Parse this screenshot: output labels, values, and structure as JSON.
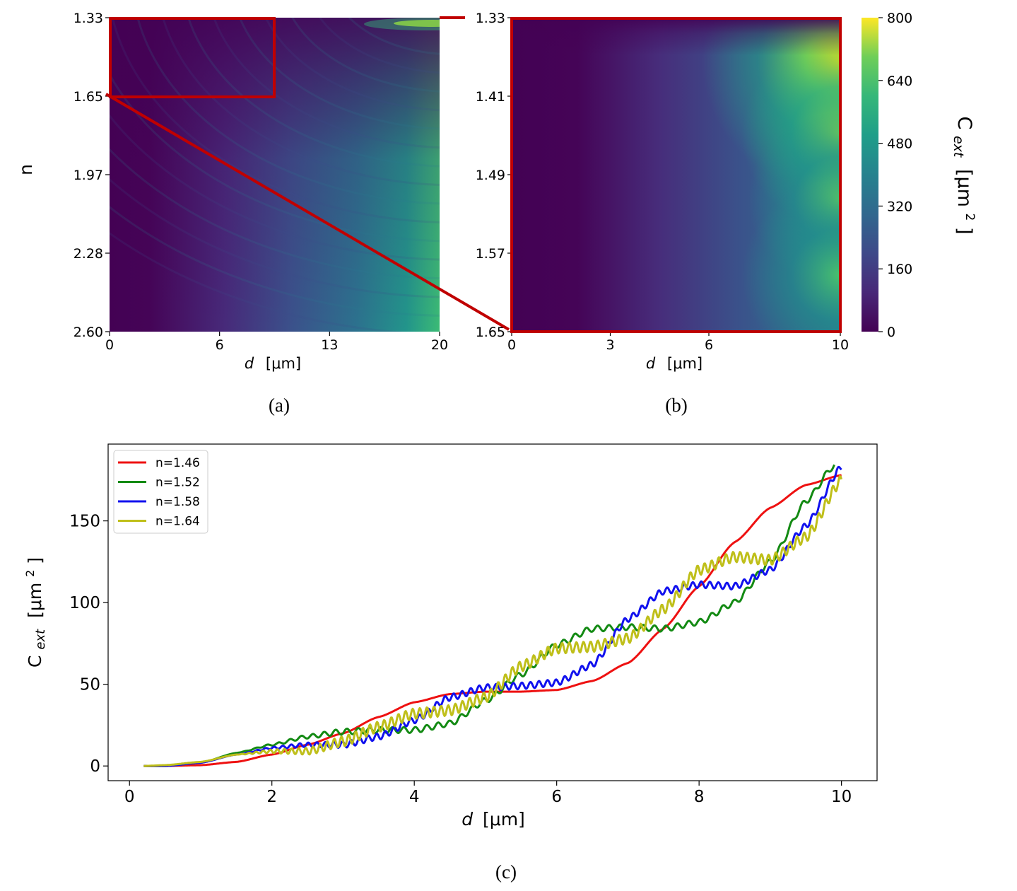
{
  "colors": {
    "frame_red": "#c00000",
    "viridis_dark": "#440154",
    "viridis_mid": "#21918c",
    "viridis_light": "#fde725"
  },
  "chart_data": [
    {
      "id": "a",
      "type": "heatmap",
      "panel_label": "(a)",
      "xlabel_var": "d",
      "xlabel_unit": "[μm]",
      "ylabel": "n",
      "x_ticks": [
        "0",
        "6",
        "13",
        "20"
      ],
      "x_range": [
        0,
        20
      ],
      "y_ticks": [
        "1.33",
        "1.65",
        "1.97",
        "2.28",
        "2.60"
      ],
      "y_range": [
        1.33,
        2.6
      ],
      "zoom_box": {
        "x_range": [
          0,
          10
        ],
        "y_range": [
          1.33,
          1.65
        ]
      }
    },
    {
      "id": "b",
      "type": "heatmap",
      "panel_label": "(b)",
      "xlabel_var": "d",
      "xlabel_unit": "[μm]",
      "x_ticks": [
        "0",
        "3",
        "6",
        "10"
      ],
      "x_range": [
        0,
        10
      ],
      "y_ticks": [
        "1.33",
        "1.41",
        "1.49",
        "1.57",
        "1.65"
      ],
      "y_range": [
        1.33,
        1.65
      ]
    },
    {
      "id": "colorbar",
      "type": "colorbar",
      "ticks": [
        "800",
        "640",
        "480",
        "320",
        "160",
        "0"
      ],
      "range": [
        0,
        800
      ],
      "label_main": "C",
      "label_sub": "ext",
      "label_unit": "[μm",
      "label_sup": "2",
      "label_close": "]"
    },
    {
      "id": "c",
      "type": "line",
      "panel_label": "(c)",
      "xlabel_var": "d",
      "xlabel_unit": "[μm]",
      "ylabel_main": "C",
      "ylabel_sub": "ext",
      "ylabel_unit": "[μm",
      "ylabel_sup": "2",
      "ylabel_close": "]",
      "xlim": [
        -0.3,
        10.5
      ],
      "ylim": [
        -9,
        197
      ],
      "x_ticks": [
        "0",
        "2",
        "4",
        "6",
        "8",
        "10"
      ],
      "y_ticks": [
        "0",
        "50",
        "100",
        "150"
      ],
      "series": [
        {
          "name": "n=1.46",
          "color": "#ee1111",
          "points": [
            [
              0.2,
              0
            ],
            [
              0.5,
              0
            ],
            [
              1,
              0.5
            ],
            [
              1.5,
              2.5
            ],
            [
              2,
              7
            ],
            [
              2.5,
              13
            ],
            [
              3,
              20
            ],
            [
              3.5,
              30
            ],
            [
              4,
              39
            ],
            [
              4.5,
              44
            ],
            [
              5,
              45.5
            ],
            [
              5.5,
              45.5
            ],
            [
              6,
              46.5
            ],
            [
              6.5,
              52
            ],
            [
              7,
              63
            ],
            [
              7.5,
              84
            ],
            [
              8,
              110
            ],
            [
              8.5,
              137
            ],
            [
              9,
              158
            ],
            [
              9.5,
              172
            ],
            [
              10,
              178
            ]
          ],
          "ripple_amp": 0,
          "ripple_period": 0.3
        },
        {
          "name": "n=1.52",
          "color": "#138a13",
          "points": [
            [
              0.2,
              0
            ],
            [
              0.5,
              0
            ],
            [
              1,
              2
            ],
            [
              1.5,
              8
            ],
            [
              2,
              13
            ],
            [
              2.5,
              18
            ],
            [
              3,
              21
            ],
            [
              3.5,
              22
            ],
            [
              4,
              22
            ],
            [
              4.5,
              26
            ],
            [
              5,
              40
            ],
            [
              5.5,
              56
            ],
            [
              6,
              74
            ],
            [
              6.5,
              84
            ],
            [
              7,
              85
            ],
            [
              7.5,
              84
            ],
            [
              8,
              88
            ],
            [
              8.5,
              100
            ],
            [
              9,
              125
            ],
            [
              9.5,
              162
            ],
            [
              9.9,
              184
            ]
          ],
          "ripple_amp": 1.8,
          "ripple_period": 0.16
        },
        {
          "name": "n=1.58",
          "color": "#1111ee",
          "points": [
            [
              0.2,
              0
            ],
            [
              0.5,
              0
            ],
            [
              1,
              2
            ],
            [
              1.5,
              7
            ],
            [
              2,
              11
            ],
            [
              2.5,
              13
            ],
            [
              3,
              13
            ],
            [
              3.5,
              18
            ],
            [
              4,
              28
            ],
            [
              4.5,
              42
            ],
            [
              5,
              48
            ],
            [
              5.5,
              49
            ],
            [
              6,
              51
            ],
            [
              6.5,
              62
            ],
            [
              7,
              90
            ],
            [
              7.5,
              107
            ],
            [
              8,
              111
            ],
            [
              8.5,
              110
            ],
            [
              9,
              120
            ],
            [
              9.5,
              147
            ],
            [
              10,
              183
            ]
          ],
          "ripple_amp": 2.0,
          "ripple_period": 0.12
        },
        {
          "name": "n=1.64",
          "color": "#bfbf1a",
          "points": [
            [
              0.2,
              0
            ],
            [
              0.5,
              0.5
            ],
            [
              1,
              2.5
            ],
            [
              1.5,
              7
            ],
            [
              2,
              9
            ],
            [
              2.5,
              9
            ],
            [
              3,
              15
            ],
            [
              3.5,
              24
            ],
            [
              4,
              32
            ],
            [
              4.5,
              34
            ],
            [
              5,
              42
            ],
            [
              5.5,
              61
            ],
            [
              6,
              72
            ],
            [
              6.5,
              73
            ],
            [
              7,
              78
            ],
            [
              7.5,
              96
            ],
            [
              8,
              120
            ],
            [
              8.5,
              128
            ],
            [
              9,
              126
            ],
            [
              9.5,
              140
            ],
            [
              10,
              175
            ]
          ],
          "ripple_amp": 3.2,
          "ripple_period": 0.1
        }
      ]
    }
  ]
}
